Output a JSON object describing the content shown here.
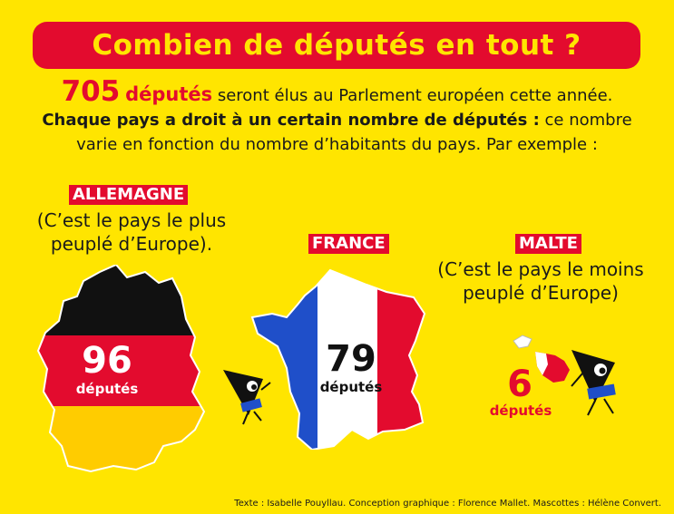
{
  "title": "Combien de députés en tout ?",
  "intro": {
    "number": "705",
    "deputes": "députés",
    "line1_rest": " seront élus au Parlement européen cette année.",
    "line2_bold": "Chaque pays a droit à un certain nombre de députés :",
    "line2_rest": " ce nombre",
    "line3": "varie en fonction du nombre d’habitants du pays. Par exemple :"
  },
  "countries": {
    "germany": {
      "name": "ALLEMAGNE",
      "caption_line1": "(C’est le pays le plus",
      "caption_line2": "peuplé d’Europe).",
      "count": "96",
      "unit": "députés",
      "colors": [
        "#111111",
        "#E30B2E",
        "#FFCC00"
      ]
    },
    "france": {
      "name": "FRANCE",
      "count": "79",
      "unit": "députés",
      "colors": [
        "#1F4FC9",
        "#FFFFFF",
        "#E30B2E"
      ]
    },
    "malta": {
      "name": "MALTE",
      "caption_line1": "(C’est le pays le moins",
      "caption_line2": "peuplé d’Europe)",
      "count": "6",
      "unit": "députés",
      "colors": [
        "#FFFFFF",
        "#E30B2E"
      ]
    }
  },
  "credits": "Texte : Isabelle Pouyllau. Conception graphique : Florence Mallet. Mascottes : Hélène Convert."
}
